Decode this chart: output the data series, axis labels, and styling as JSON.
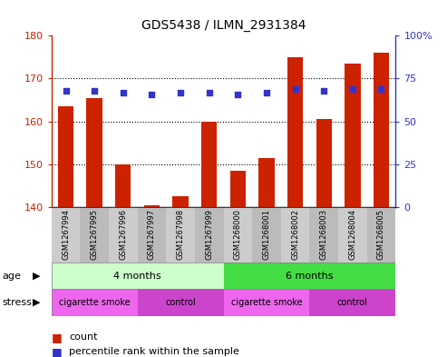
{
  "title": "GDS5438 / ILMN_2931384",
  "samples": [
    "GSM1267994",
    "GSM1267995",
    "GSM1267996",
    "GSM1267997",
    "GSM1267998",
    "GSM1267999",
    "GSM1268000",
    "GSM1268001",
    "GSM1268002",
    "GSM1268003",
    "GSM1268004",
    "GSM1268005"
  ],
  "bar_values": [
    163.5,
    165.5,
    150.0,
    140.5,
    142.5,
    160.0,
    148.5,
    151.5,
    175.0,
    160.5,
    173.5,
    176.0
  ],
  "percentile_values": [
    68,
    68,
    67,
    65.5,
    67,
    67,
    65.5,
    67,
    69,
    68,
    69,
    69
  ],
  "ylim_left": [
    140,
    180
  ],
  "ylim_right": [
    0,
    100
  ],
  "yticks_left": [
    140,
    150,
    160,
    170,
    180
  ],
  "yticks_right": [
    0,
    25,
    50,
    75,
    100
  ],
  "bar_color": "#cc2200",
  "dot_color": "#3333cc",
  "age_groups": [
    {
      "label": "4 months",
      "start": 0,
      "end": 5,
      "color": "#ccffcc"
    },
    {
      "label": "6 months",
      "start": 6,
      "end": 11,
      "color": "#44dd44"
    }
  ],
  "stress_groups": [
    {
      "label": "cigarette smoke",
      "start": 0,
      "end": 2,
      "color": "#ee66ee"
    },
    {
      "label": "control",
      "start": 3,
      "end": 5,
      "color": "#cc44cc"
    },
    {
      "label": "cigarette smoke",
      "start": 6,
      "end": 8,
      "color": "#ee66ee"
    },
    {
      "label": "control",
      "start": 9,
      "end": 11,
      "color": "#cc44cc"
    }
  ],
  "legend_count_color": "#cc2200",
  "legend_dot_color": "#3333cc",
  "sample_bg_colors": [
    "#cccccc",
    "#bbbbbb"
  ],
  "figsize": [
    4.93,
    3.93
  ],
  "dpi": 100
}
